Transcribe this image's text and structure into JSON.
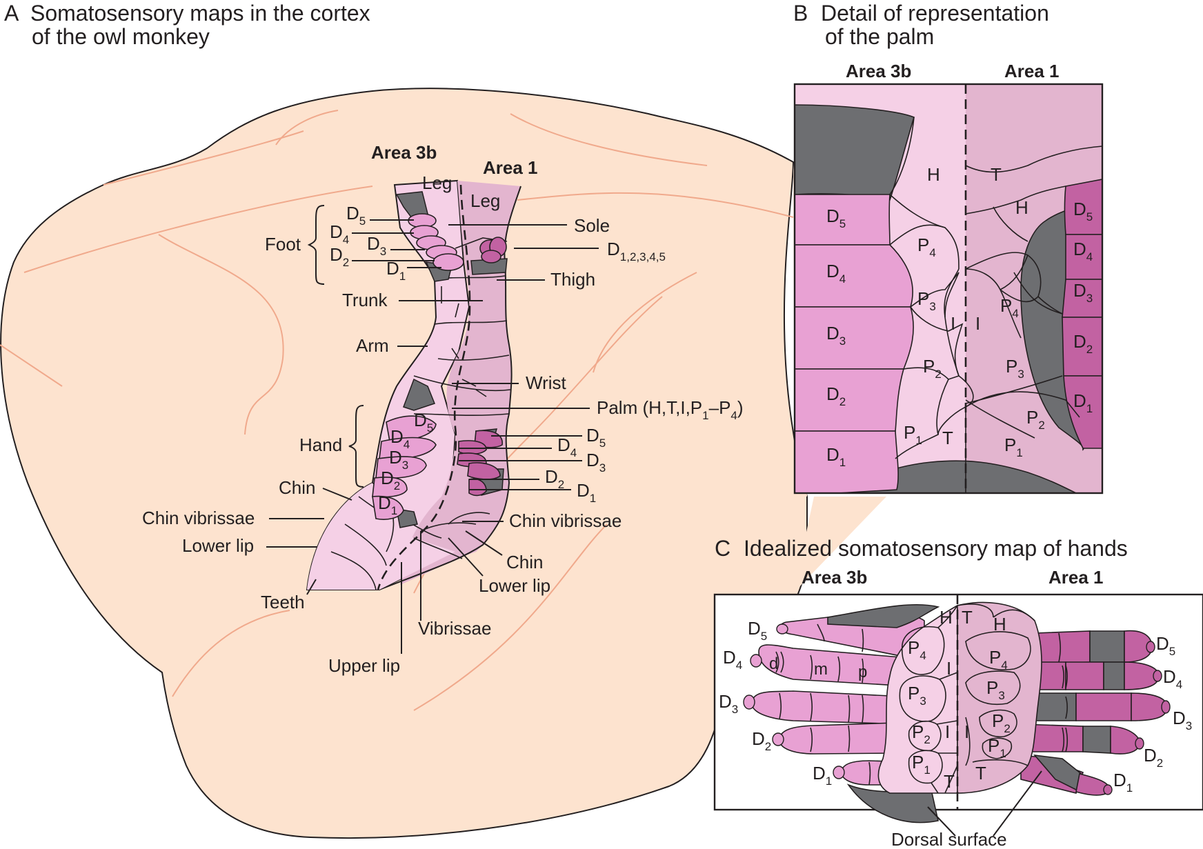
{
  "panels": {
    "a_letter": "A",
    "a_title_line1": "Somatosensory maps in the cortex",
    "a_title_line2": "of the owl monkey",
    "b_letter": "B",
    "b_title_line1": "Detail of representation",
    "b_title_line2": "of the palm",
    "c_letter": "C",
    "c_title": "Idealized somatosensory map of hands"
  },
  "areas": {
    "area_3b": "Area 3b",
    "area_1": "Area 1"
  },
  "map_a": {
    "leg_3b": "Leg",
    "leg_1": "Leg",
    "foot": "Foot",
    "sole": "Sole",
    "thigh": "Thigh",
    "d_all": "D",
    "d_all_sub": "1,2,3,4,5",
    "trunk": "Trunk",
    "arm": "Arm",
    "wrist": "Wrist",
    "palm": "Palm (H,T,I,P",
    "palm_sub1": "1",
    "palm_dash": "–P",
    "palm_sub4": "4",
    "palm_end": ")",
    "hand": "Hand",
    "chin": "Chin",
    "chin_vibrissae": "Chin vibrissae",
    "lower_lip": "Lower lip",
    "teeth": "Teeth",
    "vibrissae": "Vibrissae",
    "upper_lip": "Upper lip",
    "chin_r": "Chin",
    "chin_vibrissae_r": "Chin vibrissae",
    "lower_lip_r": "Lower lip",
    "digit_letter": "D",
    "n1": "1",
    "n2": "2",
    "n3": "3",
    "n4": "4",
    "n5": "5"
  },
  "map_b": {
    "h": "H",
    "t": "T",
    "i": "I",
    "p": "P",
    "d": "D",
    "n1": "1",
    "n2": "2",
    "n3": "3",
    "n4": "4",
    "n5": "5"
  },
  "map_c": {
    "h": "H",
    "t": "T",
    "i": "I",
    "p": "P",
    "d": "D",
    "seg_d": "d",
    "seg_m": "m",
    "seg_p": "p",
    "n1": "1",
    "n2": "2",
    "n3": "3",
    "n4": "4",
    "n5": "5",
    "dorsal_surface": "Dorsal surface"
  },
  "colors": {
    "brain": "#fde3cf",
    "area3b": "#f5d0e6",
    "area1": "#e3b5cf",
    "digit3b": "#e8a1d3",
    "digit1": "#c262a2",
    "dorsal": "#6d6e71",
    "outline": "#231f20"
  }
}
